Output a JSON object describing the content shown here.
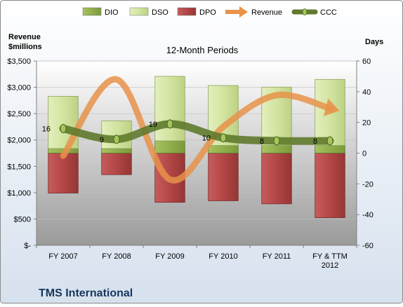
{
  "chart_data": {
    "type": "bar",
    "title": "12-Month Periods",
    "company": "TMS International",
    "ylabel_left_line1": "Revenue",
    "ylabel_left_line2": "$millions",
    "ylabel_right": "Days",
    "categories": [
      [
        "FY 2007"
      ],
      [
        "FY 2008"
      ],
      [
        "FY 2009"
      ],
      [
        "FY 2010"
      ],
      [
        "FY 2011"
      ],
      [
        "FY & TTM",
        "2012"
      ]
    ],
    "left_axis": {
      "min": 0,
      "max": 3500,
      "step": 500,
      "tick_labels": [
        "$-",
        "$500",
        "$1,000",
        "$1,500",
        "$2,000",
        "$2,500",
        "$3,000",
        "$3,500"
      ]
    },
    "right_axis": {
      "min": -60,
      "max": 60,
      "step": 20,
      "tick_labels": [
        "-60",
        "-40",
        "-20",
        "0",
        "20",
        "40",
        "60"
      ]
    },
    "legend": [
      {
        "name": "DIO",
        "kind": "bar",
        "color": "#8fb04a"
      },
      {
        "name": "DSO",
        "kind": "bar",
        "color": "#cfe29b"
      },
      {
        "name": "DPO",
        "kind": "bar",
        "color": "#b44a4a"
      },
      {
        "name": "Revenue",
        "kind": "arrow",
        "color": "#e8924a"
      },
      {
        "name": "CCC",
        "kind": "line",
        "color": "#5f7a2c"
      }
    ],
    "series": [
      {
        "name": "DIO",
        "axis": "right",
        "values": [
          3,
          3,
          8,
          5,
          5,
          5
        ]
      },
      {
        "name": "DSO",
        "axis": "right",
        "values": [
          34,
          18,
          42,
          39,
          38,
          43
        ]
      },
      {
        "name": "DPO",
        "axis": "right",
        "values": [
          -26,
          -14,
          -32,
          -31,
          -33,
          -42
        ]
      },
      {
        "name": "Revenue",
        "axis": "left",
        "values": [
          1700,
          3150,
          1250,
          2250,
          2850,
          2600
        ]
      },
      {
        "name": "CCC",
        "axis": "right",
        "values": [
          16,
          9,
          19,
          10,
          8,
          8
        ],
        "data_labels": [
          "16",
          "9",
          "19",
          "10",
          "8",
          "8"
        ]
      }
    ],
    "colors": {
      "dio": "#8fb04a",
      "dso": "#cfe29b",
      "dpo": "#b44a4a",
      "revenue": "#e8924a",
      "ccc": "#5f7a2c"
    }
  }
}
